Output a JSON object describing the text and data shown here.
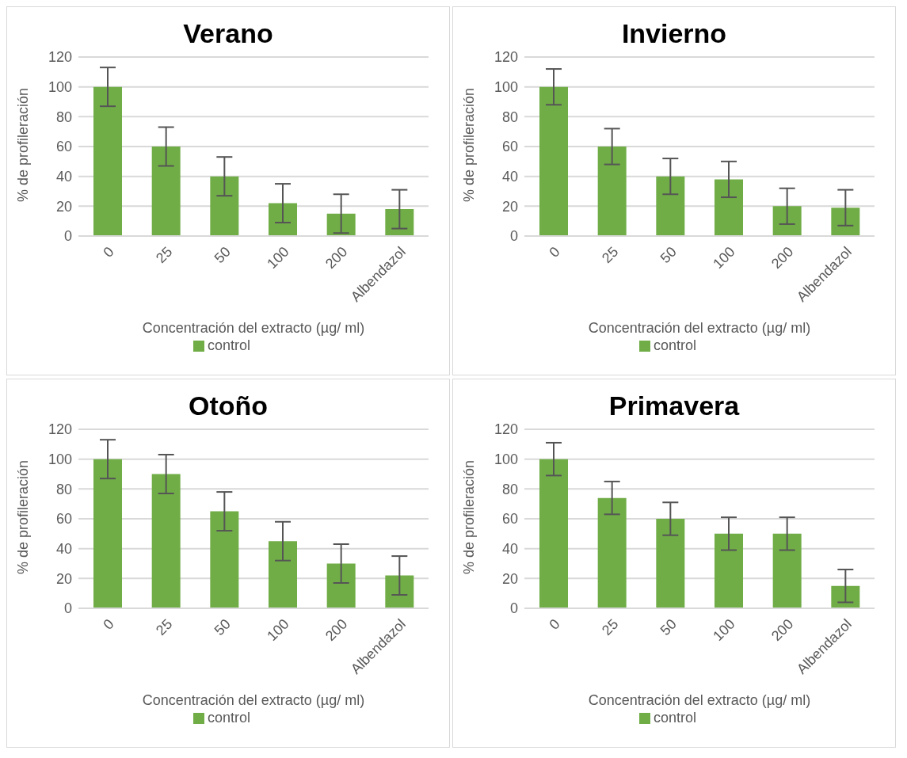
{
  "chart_data": [
    {
      "type": "bar",
      "title": "Verano",
      "xlabel": "Concentración del extracto (µg/ ml)",
      "ylabel": "% de profileración",
      "categories": [
        "0",
        "25",
        "50",
        "100",
        "200",
        "Albendazol"
      ],
      "series": [
        {
          "name": "control",
          "color": "#70ad47",
          "values": [
            100,
            60,
            40,
            22,
            15,
            18
          ],
          "errors": [
            13,
            13,
            13,
            13,
            13,
            13
          ]
        }
      ],
      "ylim": [
        0,
        120
      ],
      "yticks": [
        0,
        20,
        40,
        60,
        80,
        100,
        120
      ],
      "grid": "y",
      "legend": "bottom"
    },
    {
      "type": "bar",
      "title": "Invierno",
      "xlabel": "Concentración del extracto (µg/ ml)",
      "ylabel": "% de profileración",
      "categories": [
        "0",
        "25",
        "50",
        "100",
        "200",
        "Albendazol"
      ],
      "series": [
        {
          "name": "control",
          "color": "#70ad47",
          "values": [
            100,
            60,
            40,
            38,
            20,
            19
          ],
          "errors": [
            12,
            12,
            12,
            12,
            12,
            12
          ]
        }
      ],
      "ylim": [
        0,
        120
      ],
      "yticks": [
        0,
        20,
        40,
        60,
        80,
        100,
        120
      ],
      "grid": "y",
      "legend": "bottom"
    },
    {
      "type": "bar",
      "title": "Otoño",
      "xlabel": "Concentración del extracto (µg/ ml)",
      "ylabel": "% de profileración",
      "categories": [
        "0",
        "25",
        "50",
        "100",
        "200",
        "Albendazol"
      ],
      "series": [
        {
          "name": "control",
          "color": "#70ad47",
          "values": [
            100,
            90,
            65,
            45,
            30,
            22
          ],
          "errors": [
            13,
            13,
            13,
            13,
            13,
            13
          ]
        }
      ],
      "ylim": [
        0,
        120
      ],
      "yticks": [
        0,
        20,
        40,
        60,
        80,
        100,
        120
      ],
      "grid": "y",
      "legend": "bottom"
    },
    {
      "type": "bar",
      "title": "Primavera",
      "xlabel": "Concentración del extracto (µg/ ml)",
      "ylabel": "% de profileración",
      "categories": [
        "0",
        "25",
        "50",
        "100",
        "200",
        "Albendazol"
      ],
      "series": [
        {
          "name": "control",
          "color": "#70ad47",
          "values": [
            100,
            74,
            60,
            50,
            50,
            15
          ],
          "errors": [
            11,
            11,
            11,
            11,
            11,
            11
          ]
        }
      ],
      "ylim": [
        0,
        120
      ],
      "yticks": [
        0,
        20,
        40,
        60,
        80,
        100,
        120
      ],
      "grid": "y",
      "legend": "bottom"
    }
  ]
}
